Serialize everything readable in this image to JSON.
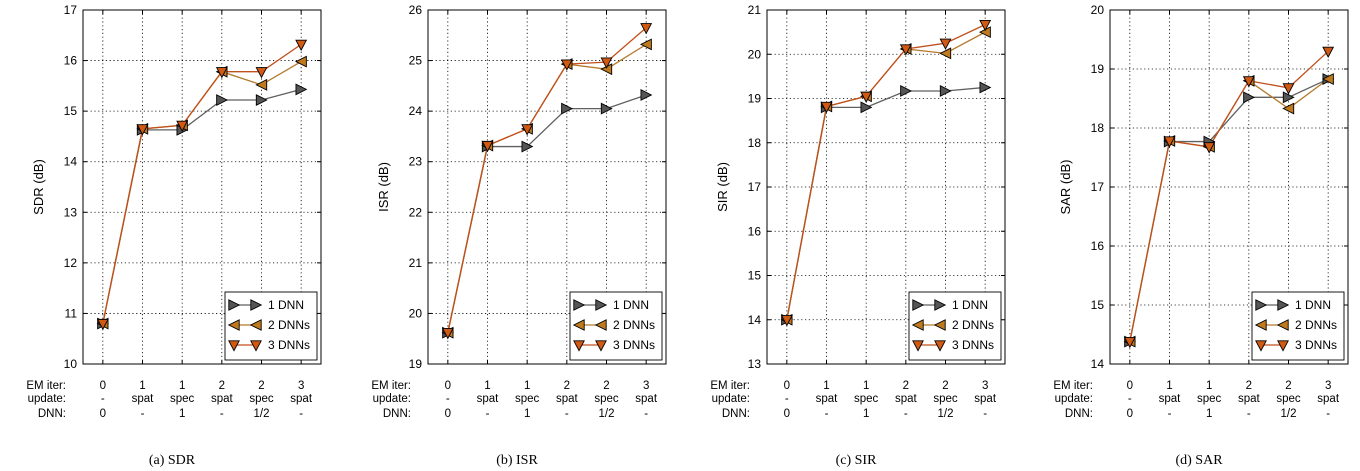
{
  "colors": {
    "1 DNN": "#555555",
    "2 DNNs": "#c07a1e",
    "3 DNNs": "#d05a14",
    "line_1 DNN": "#606060",
    "line_2 DNNs": "#b57a2c",
    "line_3 DNNs": "#c0501c"
  },
  "x_rows": {
    "labels": [
      "EM iter:",
      "update:",
      "DNN:"
    ],
    "em_iter": [
      "0",
      "1",
      "1",
      "2",
      "2",
      "3"
    ],
    "update": [
      "-",
      "spat",
      "spec",
      "spat",
      "spec",
      "spat"
    ],
    "dnn": [
      "0",
      "-",
      "1",
      "-",
      "1/2",
      "-"
    ]
  },
  "legend": [
    "1 DNN",
    "2 DNNs",
    "3 DNNs"
  ],
  "chart_data": [
    {
      "type": "line",
      "caption": "(a) SDR",
      "ylabel": "SDR (dB)",
      "ylim": [
        10,
        17
      ],
      "yticks": [
        "10",
        "11",
        "12",
        "13",
        "14",
        "15",
        "16",
        "17"
      ],
      "grid": true,
      "legend_position": "bottom-right",
      "series": [
        {
          "name": "1 DNN",
          "values": [
            10.8,
            14.63,
            14.63,
            15.22,
            15.22,
            15.43
          ]
        },
        {
          "name": "2 DNNs",
          "values": [
            10.8,
            14.65,
            14.72,
            15.78,
            15.52,
            15.98
          ]
        },
        {
          "name": "3 DNNs",
          "values": [
            10.8,
            14.65,
            14.72,
            15.78,
            15.78,
            16.32
          ]
        }
      ]
    },
    {
      "type": "line",
      "caption": "(b) ISR",
      "ylabel": "ISR (dB)",
      "ylim": [
        19,
        26
      ],
      "yticks": [
        "19",
        "20",
        "21",
        "22",
        "23",
        "24",
        "25",
        "26"
      ],
      "grid": true,
      "legend_position": "bottom-right",
      "series": [
        {
          "name": "1 DNN",
          "values": [
            19.62,
            23.3,
            23.3,
            24.05,
            24.05,
            24.32
          ]
        },
        {
          "name": "2 DNNs",
          "values": [
            19.62,
            23.32,
            23.65,
            24.93,
            24.83,
            25.32
          ]
        },
        {
          "name": "3 DNNs",
          "values": [
            19.62,
            23.32,
            23.65,
            24.93,
            24.97,
            25.65
          ]
        }
      ]
    },
    {
      "type": "line",
      "caption": "(c) SIR",
      "ylabel": "SIR (dB)",
      "ylim": [
        13,
        21
      ],
      "yticks": [
        "13",
        "14",
        "15",
        "16",
        "17",
        "18",
        "19",
        "20",
        "21"
      ],
      "grid": true,
      "legend_position": "bottom-right",
      "series": [
        {
          "name": "1 DNN",
          "values": [
            14.0,
            18.8,
            18.8,
            19.17,
            19.17,
            19.25
          ]
        },
        {
          "name": "2 DNNs",
          "values": [
            14.0,
            18.82,
            19.05,
            20.12,
            20.02,
            20.5
          ]
        },
        {
          "name": "3 DNNs",
          "values": [
            14.0,
            18.82,
            19.05,
            20.12,
            20.25,
            20.67
          ]
        }
      ]
    },
    {
      "type": "line",
      "caption": "(d) SAR",
      "ylabel": "SAR (dB)",
      "ylim": [
        14,
        20
      ],
      "yticks": [
        "14",
        "15",
        "16",
        "17",
        "18",
        "19",
        "20"
      ],
      "grid": true,
      "legend_position": "bottom-right",
      "series": [
        {
          "name": "1 DNN",
          "values": [
            14.38,
            17.77,
            17.77,
            18.52,
            18.52,
            18.83
          ]
        },
        {
          "name": "2 DNNs",
          "values": [
            14.38,
            17.78,
            17.68,
            18.8,
            18.33,
            18.83
          ]
        },
        {
          "name": "3 DNNs",
          "values": [
            14.38,
            17.78,
            17.68,
            18.8,
            18.68,
            19.3
          ]
        }
      ]
    }
  ]
}
